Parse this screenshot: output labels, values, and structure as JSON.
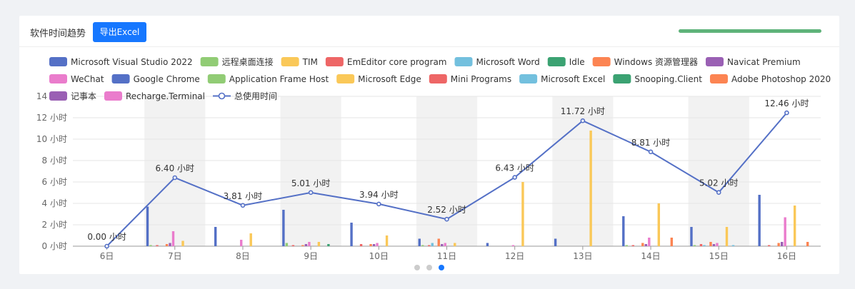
{
  "header": {
    "title": "软件时间趋势",
    "export_label": "导出Excel"
  },
  "progress": {
    "value": 1.0
  },
  "pager": {
    "count": 3,
    "active": 2
  },
  "chart_data": {
    "type": "bar",
    "title": "软件时间趋势",
    "categories": [
      "6日",
      "7日",
      "8日",
      "9日",
      "10日",
      "11日",
      "12日",
      "13日",
      "14日",
      "15日",
      "16日"
    ],
    "yAxis": {
      "min": 0,
      "max": 14,
      "step": 2,
      "unit": "小时"
    },
    "legend_position": "top",
    "series": [
      {
        "name": "Microsoft Visual Studio 2022",
        "color": "#5470c6",
        "values": [
          0,
          3.7,
          1.8,
          3.4,
          2.2,
          0.7,
          0.3,
          0.7,
          2.8,
          1.8,
          4.8
        ]
      },
      {
        "name": "远程桌面连接",
        "color": "#91cc75",
        "values": [
          0,
          0.1,
          0,
          0.3,
          0,
          0.1,
          0,
          0,
          0.1,
          0.1,
          0
        ]
      },
      {
        "name": "TIM",
        "color": "#fac858",
        "values": [
          0,
          0,
          0,
          0,
          0,
          0,
          0,
          0,
          0,
          0,
          0
        ]
      },
      {
        "name": "EmEditor core program",
        "color": "#ee6666",
        "values": [
          0,
          0.1,
          0,
          0.1,
          0.2,
          0.1,
          0,
          0,
          0.1,
          0.2,
          0.1
        ]
      },
      {
        "name": "Microsoft Word",
        "color": "#73c0de",
        "values": [
          0,
          0,
          0,
          0,
          0,
          0.3,
          0,
          0,
          0,
          0.1,
          0
        ]
      },
      {
        "name": "Idle",
        "color": "#3ba272",
        "values": [
          0,
          0,
          0,
          0,
          0,
          0,
          0,
          0,
          0,
          0,
          0
        ]
      },
      {
        "name": "Windows 资源管理器",
        "color": "#fc8452",
        "values": [
          0,
          0.2,
          0,
          0.1,
          0.2,
          0.7,
          0,
          0,
          0.3,
          0.4,
          0.3
        ]
      },
      {
        "name": "Navicat Premium",
        "color": "#9a60b4",
        "values": [
          0,
          0.3,
          0,
          0.2,
          0.2,
          0.2,
          0,
          0,
          0.2,
          0.2,
          0.4
        ]
      },
      {
        "name": "WeChat",
        "color": "#ea7ccc",
        "values": [
          0,
          1.4,
          0.6,
          0.4,
          0.3,
          0.3,
          0.1,
          0,
          0.8,
          0.3,
          2.7
        ]
      },
      {
        "name": "Google Chrome",
        "color": "#5470c6",
        "values": [
          0,
          0,
          0,
          0,
          0,
          0,
          0,
          0,
          0,
          0,
          0
        ]
      },
      {
        "name": "Application Frame Host",
        "color": "#91cc75",
        "values": [
          0,
          0,
          0,
          0,
          0,
          0,
          0,
          0,
          0,
          0,
          0
        ]
      },
      {
        "name": "Microsoft Edge",
        "color": "#fac858",
        "values": [
          0,
          0.5,
          1.2,
          0.4,
          1.0,
          0.3,
          6.0,
          10.8,
          4.0,
          1.8,
          3.8
        ]
      },
      {
        "name": "Mini Programs",
        "color": "#ee6666",
        "values": [
          0,
          0,
          0,
          0,
          0,
          0,
          0,
          0,
          0,
          0,
          0
        ]
      },
      {
        "name": "Microsoft Excel",
        "color": "#73c0de",
        "values": [
          0,
          0,
          0,
          0,
          0,
          0,
          0,
          0,
          0,
          0.1,
          0
        ]
      },
      {
        "name": "Snooping.Client",
        "color": "#3ba272",
        "values": [
          0,
          0,
          0,
          0.2,
          0,
          0,
          0,
          0,
          0,
          0,
          0
        ]
      },
      {
        "name": "Adobe Photoshop 2020",
        "color": "#fc8452",
        "values": [
          0,
          0,
          0,
          0,
          0,
          0,
          0,
          0,
          0.8,
          0,
          0.4
        ]
      },
      {
        "name": "记事本",
        "color": "#9a60b4",
        "values": [
          0,
          0,
          0,
          0,
          0,
          0,
          0,
          0,
          0,
          0,
          0
        ]
      },
      {
        "name": "Recharge.Terminal",
        "color": "#ea7ccc",
        "values": [
          0,
          0,
          0,
          0,
          0,
          0,
          0,
          0,
          0,
          0,
          0
        ]
      }
    ],
    "line": {
      "name": "总使用时间",
      "color": "#5470c6",
      "values": [
        0.0,
        6.4,
        3.81,
        5.01,
        3.94,
        2.52,
        6.43,
        11.72,
        8.81,
        5.02,
        12.46
      ],
      "labels": [
        "0.00 小时",
        "6.40 小时",
        "3.81 小时",
        "5.01 小时",
        "3.94 小时",
        "2.52 小时",
        "6.43 小时",
        "11.72 小时",
        "8.81 小时",
        "5.02 小时",
        "12.46 小时"
      ]
    }
  }
}
